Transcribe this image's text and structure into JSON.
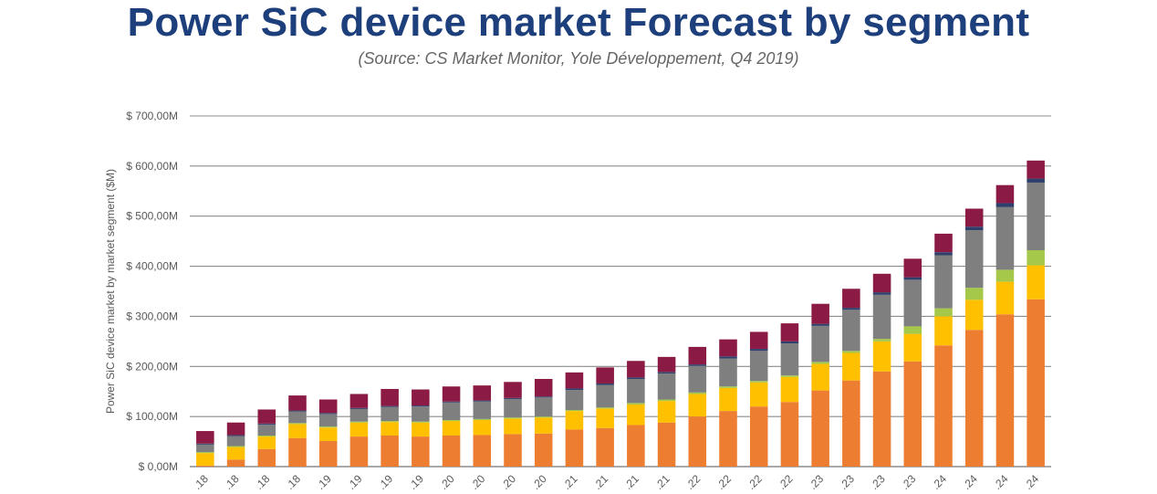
{
  "header": {
    "title": "Power SiC device market Forecast by segment",
    "subtitle": "(Source: CS Market Monitor, Yole Développement, Q4 2019)"
  },
  "chart_data": {
    "type": "bar",
    "stacked": true,
    "title": "Power SiC device market Forecast by segment",
    "subtitle": "(Source: CS Market Monitor, Yole Développement, Q4 2019)",
    "xlabel": "",
    "ylabel": "Power SiC device market by market segment ($M)",
    "ylim": [
      0,
      700
    ],
    "yticks": [
      0,
      100,
      200,
      300,
      400,
      500,
      600,
      700
    ],
    "ytick_labels": [
      "$ 0,00M",
      "$ 100,00M",
      "$ 200,00M",
      "$ 300,00M",
      "$ 400,00M",
      "$ 500,00M",
      "$ 600,00M",
      "$ 700,00M"
    ],
    "grid": true,
    "legend": "none",
    "categories": [
      ".18",
      ".18",
      ".18",
      ".18",
      ".19",
      ".19",
      ".19",
      ".19",
      ".20",
      ".20",
      ".20",
      ".20",
      ".21",
      ".21",
      ".21",
      ".21",
      ".22",
      ".22",
      ".22",
      ".22",
      ".23",
      ".23",
      ".23",
      ".23",
      ".24",
      ".24",
      ".24",
      ".24"
    ],
    "series": [
      {
        "color": "#ed7d31",
        "values": [
          2,
          14,
          35,
          57,
          51,
          60,
          62,
          60,
          62,
          63,
          65,
          66,
          74,
          77,
          83,
          88,
          100,
          111,
          120,
          129,
          152,
          172,
          190,
          210,
          242,
          273,
          304,
          334
        ]
      },
      {
        "color": "#ffc000",
        "values": [
          25,
          25,
          25,
          28,
          27,
          28,
          27,
          28,
          29,
          30,
          31,
          32,
          37,
          39,
          41,
          43,
          45,
          46,
          48,
          50,
          53,
          55,
          60,
          55,
          58,
          60,
          65,
          68
        ]
      },
      {
        "color": "#a5c84a",
        "values": [
          2,
          2,
          2,
          2,
          2,
          2,
          2,
          2,
          2,
          2,
          2,
          2,
          2,
          2,
          3,
          3,
          3,
          3,
          3,
          3,
          4,
          4,
          5,
          15,
          16,
          24,
          24,
          30
        ]
      },
      {
        "color": "#7f7f7f",
        "values": [
          15,
          20,
          22,
          23,
          25,
          25,
          28,
          30,
          35,
          35,
          37,
          38,
          40,
          45,
          48,
          52,
          53,
          56,
          60,
          64,
          72,
          82,
          88,
          93,
          106,
          115,
          125,
          135
        ]
      },
      {
        "color": "#2f3f6b",
        "values": [
          2,
          2,
          2,
          2,
          2,
          2,
          2,
          2,
          2,
          2,
          2,
          2,
          3,
          3,
          3,
          3,
          3,
          4,
          4,
          4,
          4,
          4,
          5,
          5,
          6,
          7,
          8,
          8
        ]
      },
      {
        "color": "#8b1a44",
        "values": [
          25,
          25,
          28,
          30,
          27,
          28,
          34,
          32,
          30,
          30,
          32,
          35,
          32,
          32,
          33,
          30,
          35,
          34,
          34,
          36,
          40,
          38,
          37,
          37,
          37,
          36,
          36,
          36
        ]
      }
    ]
  }
}
